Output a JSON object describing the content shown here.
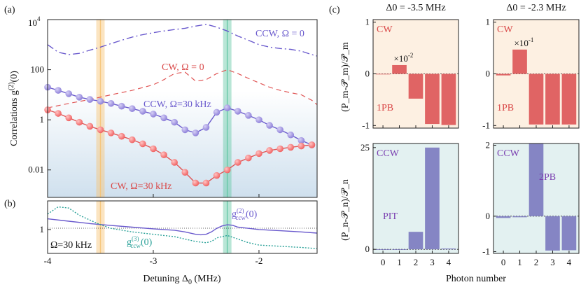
{
  "panel_labels": {
    "a": "(a)",
    "b": "(b)",
    "c": "(c)"
  },
  "colors": {
    "ccw": "#6a5acd",
    "ccw_dot": "#9a8ee0",
    "cw": "#e05555",
    "cw_dot": "#f26a6a",
    "teal": "#2aa198",
    "orange_band": "#f7c476",
    "green_band": "#63c7a5",
    "cw_bg": "#fdf0e2",
    "ccw_bg": "#e3f1f1",
    "bar_cw": "#e06464",
    "bar_ccw": "#8585c4"
  },
  "chart_data": [
    {
      "id": "panel-a",
      "type": "line",
      "ylabel_parts": {
        "main": "Correlations g",
        "sup": "(2)",
        "end": "(0)"
      },
      "yscale": "log",
      "xlim": [
        -4,
        -1.45
      ],
      "ylim": [
        0.0008,
        10000
      ],
      "ytick_labels": [
        "0.01",
        "1",
        "100"
      ],
      "ytick_values": [
        0.01,
        1,
        100
      ],
      "ytop": {
        "base": "10",
        "exp": "4",
        "value": 10000
      },
      "bands": [
        -3.5,
        -2.3
      ],
      "annotations": {
        "ccw0": "CCW, Ω = 0",
        "cw0": "CW, Ω = 0",
        "ccw30": "CCW, Ω=30 kHz",
        "cw30": "CW, Ω=30 kHz"
      },
      "series": [
        {
          "name": "CCW, Ω = 0",
          "style": "dashdot",
          "x": [
            -4.0,
            -3.9,
            -3.8,
            -3.7,
            -3.6,
            -3.5,
            -3.4,
            -3.3,
            -3.2,
            -3.1,
            -3.0,
            -2.9,
            -2.8,
            -2.7,
            -2.6,
            -2.5,
            -2.4,
            -2.3,
            -2.2,
            -2.1,
            -2.0,
            -1.9,
            -1.8,
            -1.7,
            -1.6,
            -1.5,
            -1.45
          ],
          "y": [
            1000,
            500,
            400,
            450,
            600,
            800,
            1100,
            1500,
            2000,
            2500,
            3000,
            3500,
            4000,
            4500,
            5500,
            6500,
            5000,
            3500,
            2200,
            1500,
            1000,
            800,
            700,
            650,
            550,
            400,
            350
          ]
        },
        {
          "name": "CW, Ω = 0",
          "style": "dashed",
          "x": [
            -4.0,
            -3.8,
            -3.6,
            -3.5,
            -3.4,
            -3.2,
            -3.0,
            -2.9,
            -2.8,
            -2.7,
            -2.6,
            -2.5,
            -2.4,
            -2.3,
            -2.2,
            -2.1,
            -2.0,
            -1.9,
            -1.8,
            -1.7,
            -1.6,
            -1.5,
            -1.45
          ],
          "y": [
            3,
            4.5,
            6.5,
            8,
            10,
            15,
            25,
            40,
            70,
            80,
            35,
            40,
            70,
            100,
            70,
            45,
            30,
            20,
            15,
            12,
            10,
            6,
            4
          ]
        },
        {
          "name": "CCW, Ω=30 kHz",
          "style": "solid-dots",
          "x": [
            -4.0,
            -3.9,
            -3.8,
            -3.7,
            -3.6,
            -3.5,
            -3.4,
            -3.3,
            -3.2,
            -3.1,
            -3.0,
            -2.9,
            -2.8,
            -2.7,
            -2.6,
            -2.5,
            -2.4,
            -2.3,
            -2.2,
            -2.1,
            -2.0,
            -1.9,
            -1.8,
            -1.7,
            -1.6,
            -1.5
          ],
          "y": [
            20,
            15,
            11,
            8,
            6.5,
            5.5,
            4.5,
            3.5,
            2.8,
            2.2,
            1.7,
            1.2,
            0.8,
            0.4,
            0.3,
            0.5,
            2,
            3,
            2.2,
            1.5,
            1,
            0.6,
            0.4,
            0.25,
            0.15,
            0.1
          ]
        },
        {
          "name": "CW, Ω=30 kHz",
          "style": "solid-dots",
          "x": [
            -4.0,
            -3.9,
            -3.8,
            -3.7,
            -3.6,
            -3.5,
            -3.4,
            -3.3,
            -3.2,
            -3.1,
            -3.0,
            -2.9,
            -2.8,
            -2.7,
            -2.6,
            -2.5,
            -2.4,
            -2.3,
            -2.2,
            -2.1,
            -2.0,
            -1.9,
            -1.8,
            -1.7,
            -1.6,
            -1.5
          ],
          "y": [
            2.5,
            1.8,
            1.2,
            0.8,
            0.55,
            0.4,
            0.3,
            0.22,
            0.16,
            0.11,
            0.07,
            0.04,
            0.02,
            0.008,
            0.003,
            0.003,
            0.006,
            0.01,
            0.02,
            0.03,
            0.045,
            0.06,
            0.07,
            0.08,
            0.09,
            0.1
          ]
        }
      ]
    },
    {
      "id": "panel-b",
      "type": "line",
      "xlabel_parts": {
        "main": "Detuning Δ",
        "sub": "0",
        "end": " (MHz)"
      },
      "xlim": [
        -4,
        -1.45
      ],
      "ylim": [
        0,
        2.2
      ],
      "xticks": [
        -4,
        -3,
        -2
      ],
      "xtick_labels": [
        "-4",
        "-3",
        "-2"
      ],
      "ytick_labels": [
        "1"
      ],
      "ytick_values": [
        1
      ],
      "omega_label": "Ω=30 kHz",
      "g2_label": {
        "main": "g",
        "sup": "(2)",
        "sub": "ccw",
        "end": "(0)"
      },
      "g3_label": {
        "main": "g",
        "sup": "(3)",
        "sub": "ccw",
        "end": "(0)"
      },
      "series": [
        {
          "name": "g2_ccw",
          "style": "solid",
          "x": [
            -4.0,
            -3.8,
            -3.6,
            -3.4,
            -3.2,
            -3.0,
            -2.8,
            -2.7,
            -2.6,
            -2.55,
            -2.5,
            -2.45,
            -2.4,
            -2.35,
            -2.3,
            -2.25,
            -2.2,
            -2.1,
            -2.0,
            -1.8,
            -1.6,
            -1.45
          ],
          "y": [
            1.45,
            1.35,
            1.25,
            1.17,
            1.1,
            1.03,
            0.97,
            0.9,
            0.8,
            0.78,
            0.8,
            0.9,
            1.05,
            1.15,
            1.2,
            1.18,
            1.1,
            1.05,
            1.0,
            0.95,
            0.9,
            0.85
          ]
        },
        {
          "name": "g3_ccw",
          "style": "dotted",
          "x": [
            -4.0,
            -3.9,
            -3.8,
            -3.7,
            -3.6,
            -3.5,
            -3.4,
            -3.2,
            -3.0,
            -2.8,
            -2.7,
            -2.6,
            -2.5,
            -2.45,
            -2.4,
            -2.3,
            -2.2,
            -2.1,
            -2.0,
            -1.8,
            -1.6,
            -1.45
          ],
          "y": [
            1.65,
            1.95,
            1.9,
            1.6,
            1.4,
            1.2,
            1.05,
            0.9,
            0.8,
            0.7,
            0.6,
            0.5,
            0.45,
            0.5,
            0.65,
            0.75,
            0.6,
            0.45,
            0.35,
            0.3,
            0.25,
            0.2
          ]
        }
      ]
    },
    {
      "id": "panel-c",
      "type": "bar",
      "categories": [
        "0",
        "1",
        "2",
        "3",
        "4"
      ],
      "xlabel": "Photon number",
      "ylabel_top": "(P_m-𝒫_m)/𝒫_m",
      "ylabel_bottom": "(P_n-𝒫_n)/𝒫_n",
      "panels": [
        {
          "name": "cw-left",
          "title": "Δ0 = -3.5 MHz",
          "label": "CW",
          "note": "1PB",
          "values": [
            0,
            0.17,
            -0.48,
            -0.97,
            -0.99
          ],
          "ylim": [
            -1.05,
            1.05
          ],
          "ytick_labels": [
            "1",
            "0",
            "-1"
          ],
          "ytick_values": [
            1,
            0,
            -1
          ],
          "scale_label": {
            "base": "×10",
            "exp": "-2"
          }
        },
        {
          "name": "cw-right",
          "title": "Δ0 = -2.3 MHz",
          "label": "CW",
          "note": "1PB",
          "values": [
            -0.03,
            0.47,
            -0.98,
            -0.98,
            -0.98
          ],
          "ylim": [
            -1.05,
            1.05
          ],
          "ytick_labels": [
            "1",
            "0",
            "-1"
          ],
          "ytick_values": [
            1,
            0,
            -1
          ],
          "scale_label": {
            "base": "×10",
            "exp": "-1"
          }
        },
        {
          "name": "ccw-left",
          "label": "CCW",
          "note": "PIT",
          "values": [
            0,
            0,
            4.3,
            25,
            0.2
          ],
          "ylim": [
            -1,
            26
          ],
          "ytick_labels": [
            "25",
            "0"
          ],
          "ytick_values": [
            25,
            0
          ]
        },
        {
          "name": "ccw-right",
          "label": "CCW",
          "note": "2PB",
          "values": [
            -0.05,
            -0.03,
            2.05,
            -0.97,
            -0.96
          ],
          "ylim": [
            -1.05,
            2.05
          ],
          "ytick_labels": [
            "2",
            "0",
            "-1"
          ],
          "ytick_values": [
            2,
            0,
            -1
          ]
        }
      ]
    }
  ]
}
